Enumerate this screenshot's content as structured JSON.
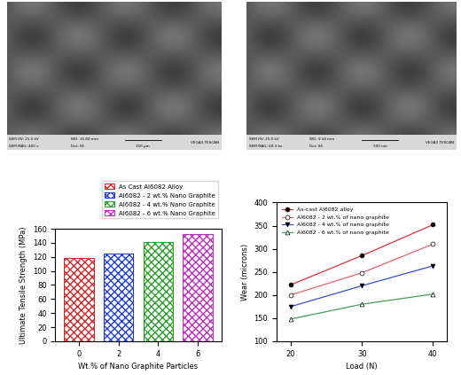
{
  "images": [
    {
      "footer": [
        "SEM HV: 25.0 kV",
        "SEM MAG: 400 x",
        "WD: 15.80 mm",
        "Det: SE",
        "100 µm",
        "VEGA3 TESCAN"
      ]
    },
    {
      "footer": [
        "SEM HV: 25.0 kV",
        "SEM MAG: 60.3 kx",
        "WD: 9.34 mm",
        "Det: SE",
        "500 nm",
        "VEGA3 TESCAN"
      ]
    }
  ],
  "chart_data": [
    {
      "type": "bar",
      "x_label": "Wt.% of Nano Graphite Particles",
      "y_label": "Ultimate Tensile Strength (MPa)",
      "categories": [
        "0",
        "2",
        "4",
        "6"
      ],
      "series": [
        {
          "name": "As Cast Al6082 Alloy",
          "color": "#d62728",
          "values": [
            118,
            null,
            null,
            null
          ]
        },
        {
          "name": "Al6082 - 2 wt.% Nano Graphite",
          "color": "#1f3fd6",
          "values": [
            null,
            125,
            null,
            null
          ]
        },
        {
          "name": "Al6082 - 4 wt.% Nano Graphite",
          "color": "#2ca02c",
          "values": [
            null,
            null,
            141,
            null
          ]
        },
        {
          "name": "Al6082 - 6 wt.% Nano Graphite",
          "color": "#c030c0",
          "values": [
            null,
            null,
            null,
            153
          ]
        }
      ],
      "ylim": [
        0,
        160
      ],
      "yticks": [
        0,
        20,
        40,
        60,
        80,
        100,
        120,
        140,
        160
      ],
      "legend": "upper right"
    },
    {
      "type": "line",
      "x_label": "Load (N)",
      "y_label": "Wear (microns)",
      "x": [
        20,
        30,
        40
      ],
      "series": [
        {
          "name": "As-cast Al6082 alloy",
          "color": "#e0303a",
          "marker": "circle",
          "values": [
            222,
            285,
            352
          ]
        },
        {
          "name": "Al6082 - 2 wt.% of nano graphite",
          "color": "#e8606a",
          "marker": "circle_open",
          "values": [
            200,
            248,
            310
          ]
        },
        {
          "name": "Al6082 - 4 wt.% of nano graphite",
          "color": "#3050d0",
          "marker": "triangle_down",
          "values": [
            175,
            220,
            263
          ]
        },
        {
          "name": "Al6082 - 6 wt.% of nano graphite",
          "color": "#40a050",
          "marker": "triangle_up_open",
          "values": [
            148,
            180,
            202
          ]
        }
      ],
      "xlim": [
        18,
        42
      ],
      "xticks": [
        20,
        30,
        40
      ],
      "ylim": [
        100,
        400
      ],
      "yticks": [
        100,
        150,
        200,
        250,
        300,
        350,
        400
      ],
      "legend": "upper left"
    }
  ]
}
